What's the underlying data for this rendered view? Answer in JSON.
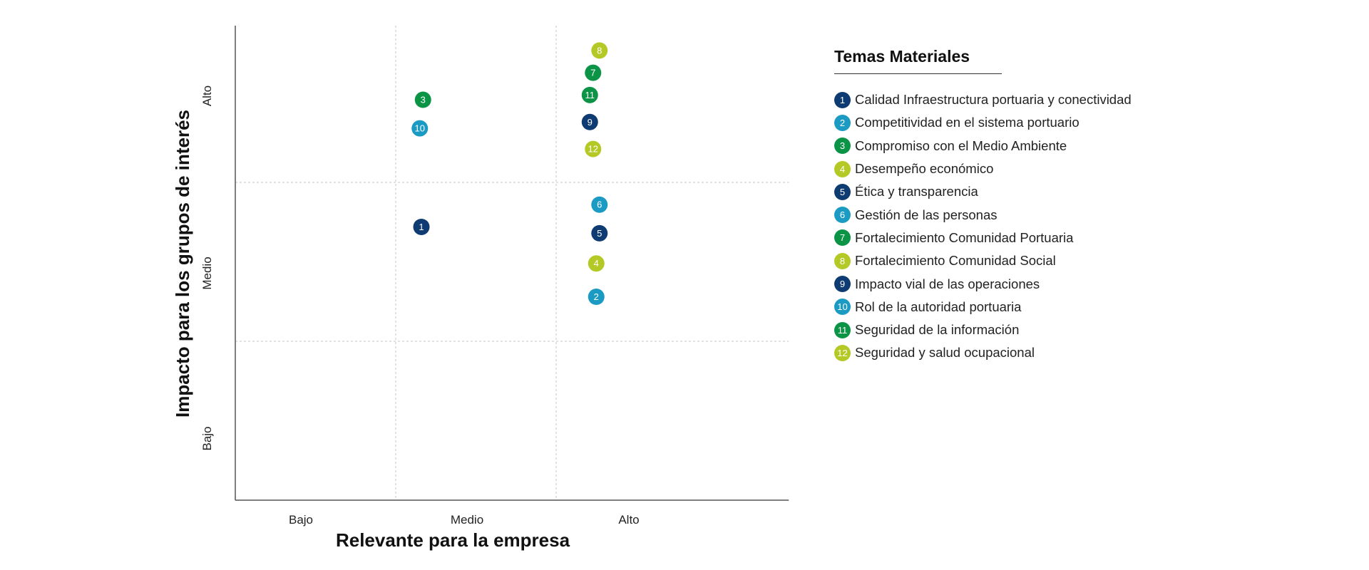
{
  "chart_data": {
    "type": "scatter",
    "title": "",
    "xlabel": "Relevante para la empresa",
    "ylabel": "Impacto para los grupos de interés",
    "x_categories": [
      "Bajo",
      "Medio",
      "Alto"
    ],
    "y_categories": [
      "Bajo",
      "Medio",
      "Alto"
    ],
    "xlim": [
      0,
      3.45
    ],
    "ylim": [
      0,
      3
    ],
    "grid": true,
    "legend_position": "right",
    "points": [
      {
        "label": "1",
        "x": 1.16,
        "y": 1.72,
        "color": "#0d3b72"
      },
      {
        "label": "2",
        "x": 2.25,
        "y": 1.28,
        "color": "#1b9bc4"
      },
      {
        "label": "3",
        "x": 1.17,
        "y": 2.52,
        "color": "#0b9445"
      },
      {
        "label": "4",
        "x": 2.25,
        "y": 1.49,
        "color": "#b4c926"
      },
      {
        "label": "5",
        "x": 2.27,
        "y": 1.68,
        "color": "#0d3b72"
      },
      {
        "label": "6",
        "x": 2.27,
        "y": 1.86,
        "color": "#1b9bc4"
      },
      {
        "label": "7",
        "x": 2.23,
        "y": 2.69,
        "color": "#0b9445"
      },
      {
        "label": "8",
        "x": 2.27,
        "y": 2.83,
        "color": "#b4c926"
      },
      {
        "label": "9",
        "x": 2.21,
        "y": 2.38,
        "color": "#0d3b72"
      },
      {
        "label": "10",
        "x": 1.15,
        "y": 2.34,
        "color": "#1b9bc4"
      },
      {
        "label": "11",
        "x": 2.21,
        "y": 2.55,
        "color": "#0b9445"
      },
      {
        "label": "12",
        "x": 2.23,
        "y": 2.21,
        "color": "#b4c926"
      }
    ]
  },
  "legend": {
    "title": "Temas Materiales",
    "items": [
      {
        "num": "1",
        "label": "Calidad Infraestructura portuaria y conectividad",
        "color": "#0d3b72"
      },
      {
        "num": "2",
        "label": "Competitividad en el sistema portuario",
        "color": "#1b9bc4"
      },
      {
        "num": "3",
        "label": "Compromiso con el Medio Ambiente",
        "color": "#0b9445"
      },
      {
        "num": "4",
        "label": "Desempeño económico",
        "color": "#b4c926"
      },
      {
        "num": "5",
        "label": "Ética y transparencia",
        "color": "#0d3b72"
      },
      {
        "num": "6",
        "label": "Gestión de las personas",
        "color": "#1b9bc4"
      },
      {
        "num": "7",
        "label": "Fortalecimiento Comunidad Portuaria",
        "color": "#0b9445"
      },
      {
        "num": "8",
        "label": "Fortalecimiento Comunidad Social",
        "color": "#b4c926"
      },
      {
        "num": "9",
        "label": "Impacto vial de las operaciones",
        "color": "#0d3b72"
      },
      {
        "num": "10",
        "label": "Rol de la autoridad portuaria",
        "color": "#1b9bc4"
      },
      {
        "num": "11",
        "label": "Seguridad de la información",
        "color": "#0b9445"
      },
      {
        "num": "12",
        "label": "Seguridad y salud ocupacional",
        "color": "#b4c926"
      }
    ]
  }
}
